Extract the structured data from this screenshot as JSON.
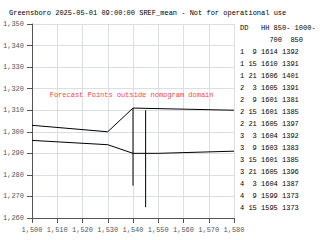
{
  "chart_data": {
    "type": "line",
    "title": "Greensboro 2025-05-01 09:00:00 SREF_mean - Not for operational use",
    "xlim": [
      1500,
      1580
    ],
    "ylim": [
      1260,
      1350
    ],
    "xticks": [
      1500,
      1510,
      1520,
      1530,
      1540,
      1550,
      1560,
      1570,
      1580
    ],
    "yticks": [
      1260,
      1270,
      1280,
      1290,
      1300,
      1310,
      1320,
      1330,
      1340,
      1350
    ],
    "grid": true,
    "series": [
      {
        "x": [
          1500,
          1530,
          1540,
          1580
        ],
        "values": [
          1303,
          1300,
          1311,
          1310
        ],
        "color": "black"
      },
      {
        "x": [
          1500,
          1530,
          1540,
          1550,
          1580
        ],
        "values": [
          1296,
          1294,
          1290,
          1290,
          1291
        ],
        "color": "black"
      },
      {
        "x": [
          1540,
          1540
        ],
        "values": [
          1311,
          1275
        ],
        "color": "black"
      },
      {
        "x": [
          1545,
          1545
        ],
        "values": [
          1310,
          1265
        ],
        "color": "black"
      }
    ],
    "annotations": [
      {
        "text": "Forecast Points outside nomogram domain",
        "x": 1507,
        "y": 1317,
        "color": "red"
      }
    ],
    "table": {
      "header": [
        "DD   HH 850- 1000-",
        "       700  850"
      ],
      "rows": [
        "1  9 1614 1392",
        "1 15 1610 1391",
        "1 21 1606 1401",
        "2  3 1605 1391",
        "2  9 1601 1381",
        "2 15 1601 1385",
        "2 21 1605 1397",
        "3  3 1604 1392",
        "3  9 1603 1383",
        "3 15 1601 1385",
        "3 21 1605 1396",
        "4  3 1604 1387",
        "4  9 1599 1373",
        "4 15 1595 1373"
      ]
    }
  }
}
